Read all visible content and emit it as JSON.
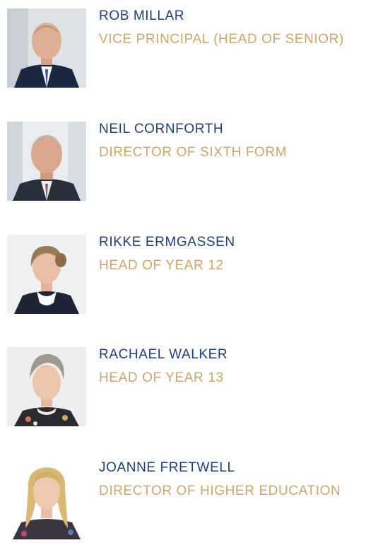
{
  "staff": [
    {
      "name": "ROB MILLAR",
      "role": "VICE PRINCIPAL (HEAD OF SENIOR)",
      "photo_icon": "portrait-photo"
    },
    {
      "name": "NEIL CORNFORTH",
      "role": "DIRECTOR OF SIXTH FORM",
      "photo_icon": "portrait-photo"
    },
    {
      "name": "RIKKE ERMGASSEN",
      "role": "HEAD OF YEAR 12",
      "photo_icon": "portrait-photo"
    },
    {
      "name": "RACHAEL WALKER",
      "role": "HEAD OF YEAR 13",
      "photo_icon": "portrait-photo"
    },
    {
      "name": "JOANNE FRETWELL",
      "role": "DIRECTOR OF HIGHER EDUCATION",
      "photo_icon": "portrait-photo"
    }
  ],
  "colors": {
    "name": "#1f3f78",
    "role": "#c9a86a",
    "background": "#ffffff"
  }
}
